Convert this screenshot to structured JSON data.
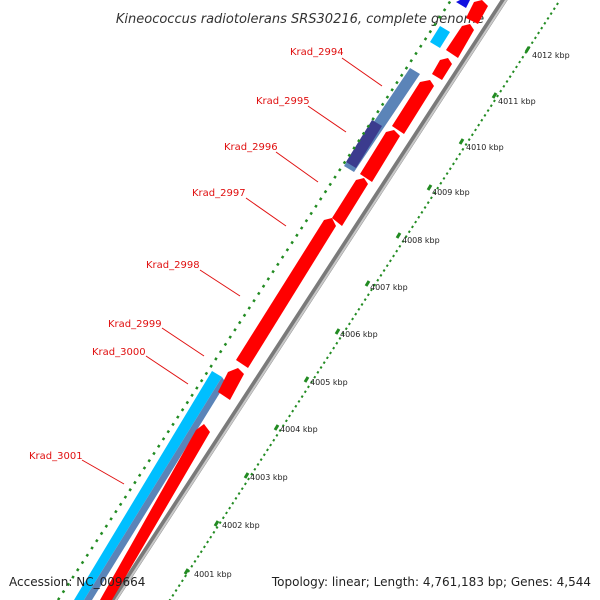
{
  "title": "Kineococcus radiotolerans SRS30216, complete genome",
  "accession": "Accession: NC_009664",
  "topology": "Topology: linear; Length: 4,761,183 bp; Genes: 4,544",
  "colors": {
    "forward_gene": "#ff0000",
    "reverse_gene": "#00bfff",
    "reverse_gene_dark": "#5b84b8",
    "reverse_gene_navy": "#3b3b8e",
    "top_gene_blue": "#1010e0",
    "backbone": "#808080",
    "tick": "#228b22",
    "label": "#e01010"
  },
  "ticks": [
    {
      "label": "4001 kbp"
    },
    {
      "label": "4002 kbp"
    },
    {
      "label": "4003 kbp"
    },
    {
      "label": "4004 kbp"
    },
    {
      "label": "4005 kbp"
    },
    {
      "label": "4006 kbp"
    },
    {
      "label": "4007 kbp"
    },
    {
      "label": "4008 kbp"
    },
    {
      "label": "4009 kbp"
    },
    {
      "label": "4010 kbp"
    },
    {
      "label": "4011 kbp"
    },
    {
      "label": "4012 kbp"
    }
  ],
  "genes": [
    {
      "label": "Krad_2994"
    },
    {
      "label": "Krad_2995"
    },
    {
      "label": "Krad_2996"
    },
    {
      "label": "Krad_2997"
    },
    {
      "label": "Krad_2998"
    },
    {
      "label": "Krad_2999"
    },
    {
      "label": "Krad_3000"
    },
    {
      "label": "Krad_3001"
    }
  ]
}
